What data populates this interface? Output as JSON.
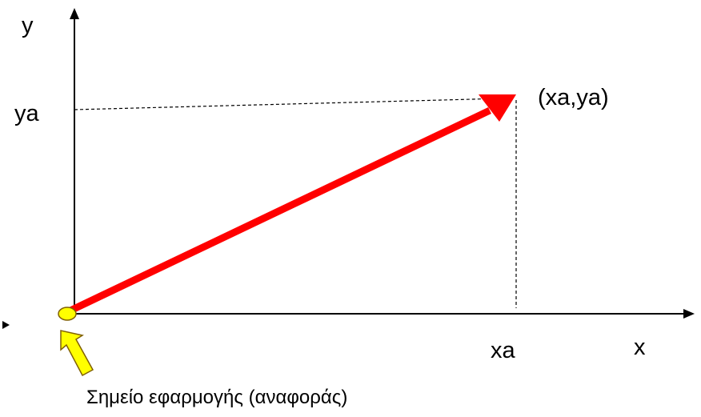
{
  "labels": {
    "y_axis": "y",
    "x_axis": "x",
    "ya": "ya",
    "xa": "xa",
    "point": "(xa,ya)",
    "origin_caption": "Σημείο εφαρμογής (αναφοράς)"
  },
  "colors": {
    "vector": "#ff0000",
    "origin_marker": "#ffff00",
    "axis": "#000000",
    "guide": "#000000"
  },
  "icons": {
    "axis_arrows": "arrowhead",
    "origin_pointer": "block-arrow",
    "origin_marker": "ellipse"
  }
}
